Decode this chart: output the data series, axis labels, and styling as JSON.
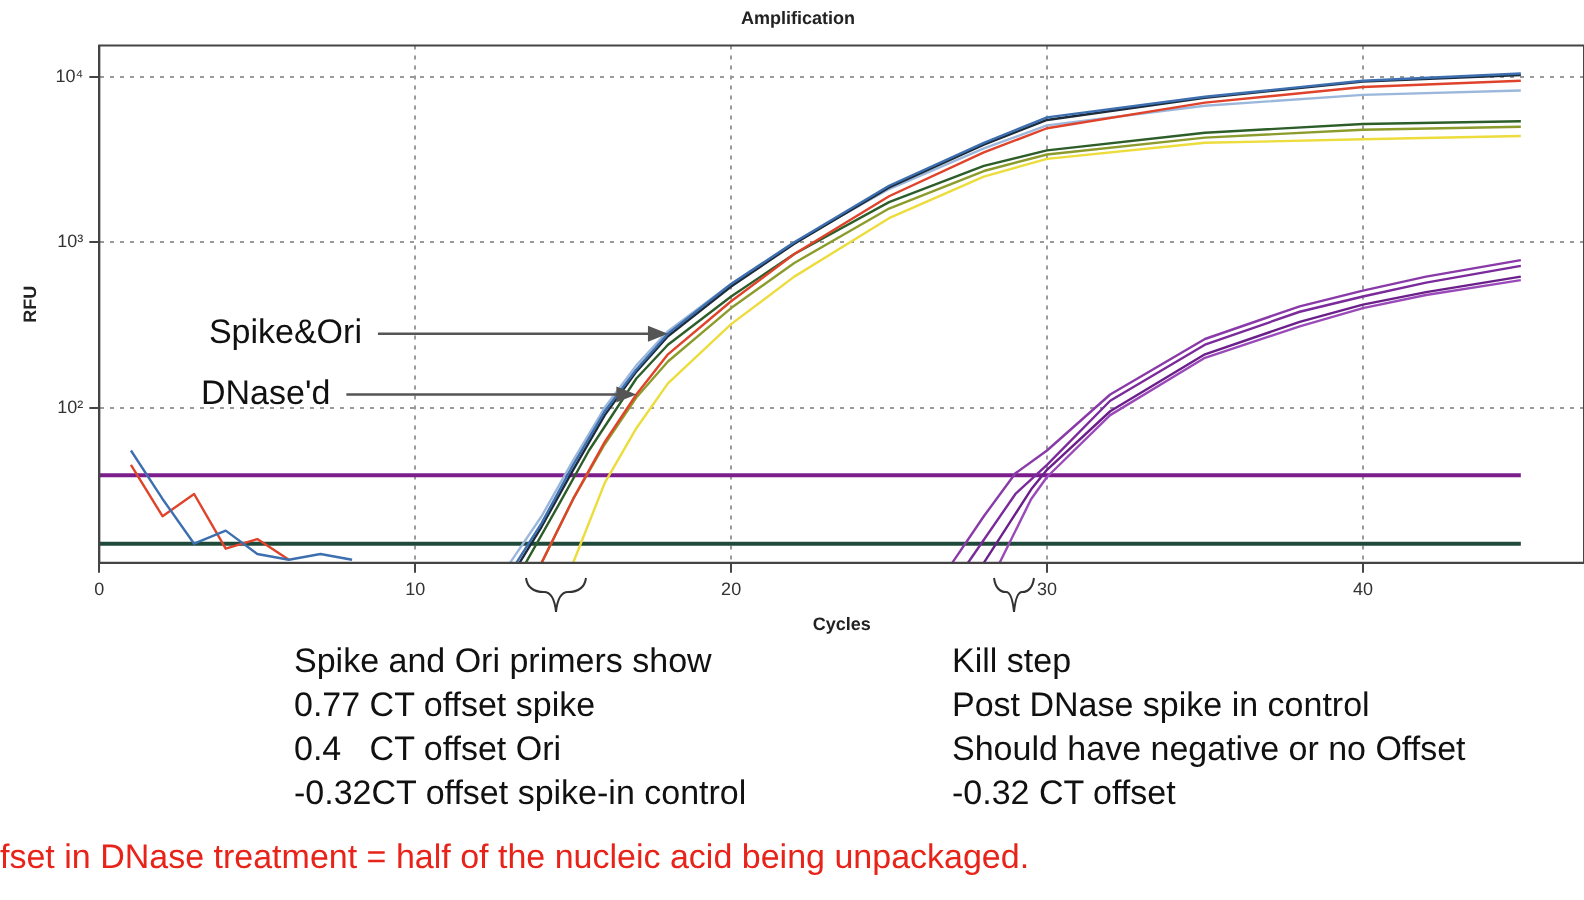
{
  "chart_data": {
    "type": "line",
    "title": "Amplification",
    "xlabel": "Cycles",
    "ylabel": "RFU",
    "log": "y",
    "grid": true,
    "legend": false,
    "marker": "none",
    "line_style": "solid",
    "xlim": [
      0,
      47
    ],
    "xticks": [
      0,
      10,
      20,
      30,
      40
    ],
    "ylim": [
      11.5,
      15500
    ],
    "yticks": [
      {
        "value": 100,
        "label": "10²"
      },
      {
        "value": 1000,
        "label": "10³"
      },
      {
        "value": 10000,
        "label": "10⁴"
      }
    ],
    "ref_lines": [
      {
        "axis": "y",
        "value": 39,
        "color": "#7b1e8c"
      },
      {
        "axis": "y",
        "value": 15,
        "color": "#1f4a3a"
      }
    ],
    "series": [
      {
        "color": "#3d6fb0",
        "x": [
          1,
          2,
          3,
          4,
          5,
          6,
          7,
          8,
          10,
          13.2,
          14,
          15,
          16,
          17,
          18,
          20,
          22,
          25,
          28,
          30,
          35,
          40,
          45
        ],
        "values": [
          55,
          28,
          15,
          18,
          13,
          12,
          13,
          12,
          null,
          11.5,
          20,
          45,
          95,
          170,
          280,
          560,
          1000,
          2200,
          4000,
          5700,
          7600,
          9500,
          10500
        ]
      },
      {
        "color": "#1c2b3a",
        "x": [
          13.3,
          14,
          15,
          16,
          17,
          18,
          20,
          22,
          25,
          28,
          30,
          35,
          40,
          45
        ],
        "values": [
          11.5,
          19,
          42,
          90,
          165,
          270,
          540,
          980,
          2150,
          3900,
          5500,
          7500,
          9400,
          10300
        ]
      },
      {
        "color": "#e0432b",
        "x": [
          1,
          2,
          3,
          4,
          5,
          6,
          8,
          14,
          15,
          16,
          17,
          18,
          20,
          22,
          25,
          28,
          30,
          35,
          40,
          45
        ],
        "values": [
          45,
          22,
          30,
          14,
          16,
          12,
          null,
          11.5,
          28,
          62,
          120,
          210,
          440,
          850,
          1900,
          3500,
          4900,
          7000,
          8700,
          9500
        ]
      },
      {
        "color": "#9bb8dc",
        "x": [
          13,
          14,
          15,
          16,
          17,
          18,
          20,
          22,
          25,
          28,
          30,
          35,
          40,
          45
        ],
        "values": [
          11.5,
          22,
          48,
          100,
          180,
          290,
          560,
          1000,
          2100,
          3700,
          5100,
          6700,
          7800,
          8300
        ]
      },
      {
        "color": "#2d5e2a",
        "x": [
          13.5,
          14.5,
          15.5,
          17,
          18,
          20,
          22,
          25,
          28,
          30,
          35,
          40,
          45
        ],
        "values": [
          11.5,
          25,
          55,
          150,
          240,
          470,
          850,
          1750,
          2900,
          3600,
          4600,
          5200,
          5400
        ]
      },
      {
        "color": "#8c9c2c",
        "x": [
          14,
          15,
          16,
          17,
          18,
          20,
          22,
          25,
          28,
          30,
          35,
          40,
          45
        ],
        "values": [
          11.5,
          28,
          60,
          115,
          190,
          400,
          750,
          1600,
          2700,
          3400,
          4300,
          4800,
          5000
        ]
      },
      {
        "color": "#ecdc3c",
        "x": [
          15,
          16,
          17,
          18,
          20,
          22,
          25,
          28,
          30,
          35,
          40,
          45
        ],
        "values": [
          11.5,
          35,
          75,
          140,
          320,
          620,
          1400,
          2500,
          3200,
          4000,
          4200,
          4400
        ]
      },
      {
        "color": "#8a3aa8",
        "x": [
          27,
          28,
          29,
          30,
          32,
          35,
          38,
          40,
          42,
          45
        ],
        "values": [
          11.5,
          22,
          40,
          55,
          120,
          260,
          410,
          510,
          620,
          780
        ]
      },
      {
        "color": "#7a2a9a",
        "x": [
          27.5,
          29,
          30,
          32,
          35,
          38,
          40,
          42,
          45
        ],
        "values": [
          11.5,
          30,
          45,
          110,
          240,
          380,
          470,
          570,
          720
        ]
      },
      {
        "color": "#6a1f8a",
        "x": [
          28,
          29.5,
          30,
          32,
          35,
          38,
          40,
          42,
          45
        ],
        "values": [
          11.5,
          32,
          42,
          95,
          210,
          330,
          420,
          500,
          620
        ]
      },
      {
        "color": "#9a4ab8",
        "x": [
          28.5,
          29.5,
          30,
          32,
          35,
          38,
          40,
          42,
          45
        ],
        "values": [
          11.5,
          28,
          38,
          90,
          200,
          310,
          400,
          480,
          590
        ]
      }
    ],
    "annotations": [
      {
        "text": "Spike&Ori",
        "x": 18,
        "y": 280
      },
      {
        "text": "DNase'd",
        "x": 17,
        "y": 120
      },
      "Spike and Ori primers show\n0.77 CT offset spike\n0.4   CT offset Ori\n-0.32CT offset spike-in control",
      "Kill step\nPost DNase spike in control\nShould have negative or no Offset\n-0.32 CT offset",
      "fset in DNase treatment = half of the nucleic acid being unpackaged."
    ]
  }
}
